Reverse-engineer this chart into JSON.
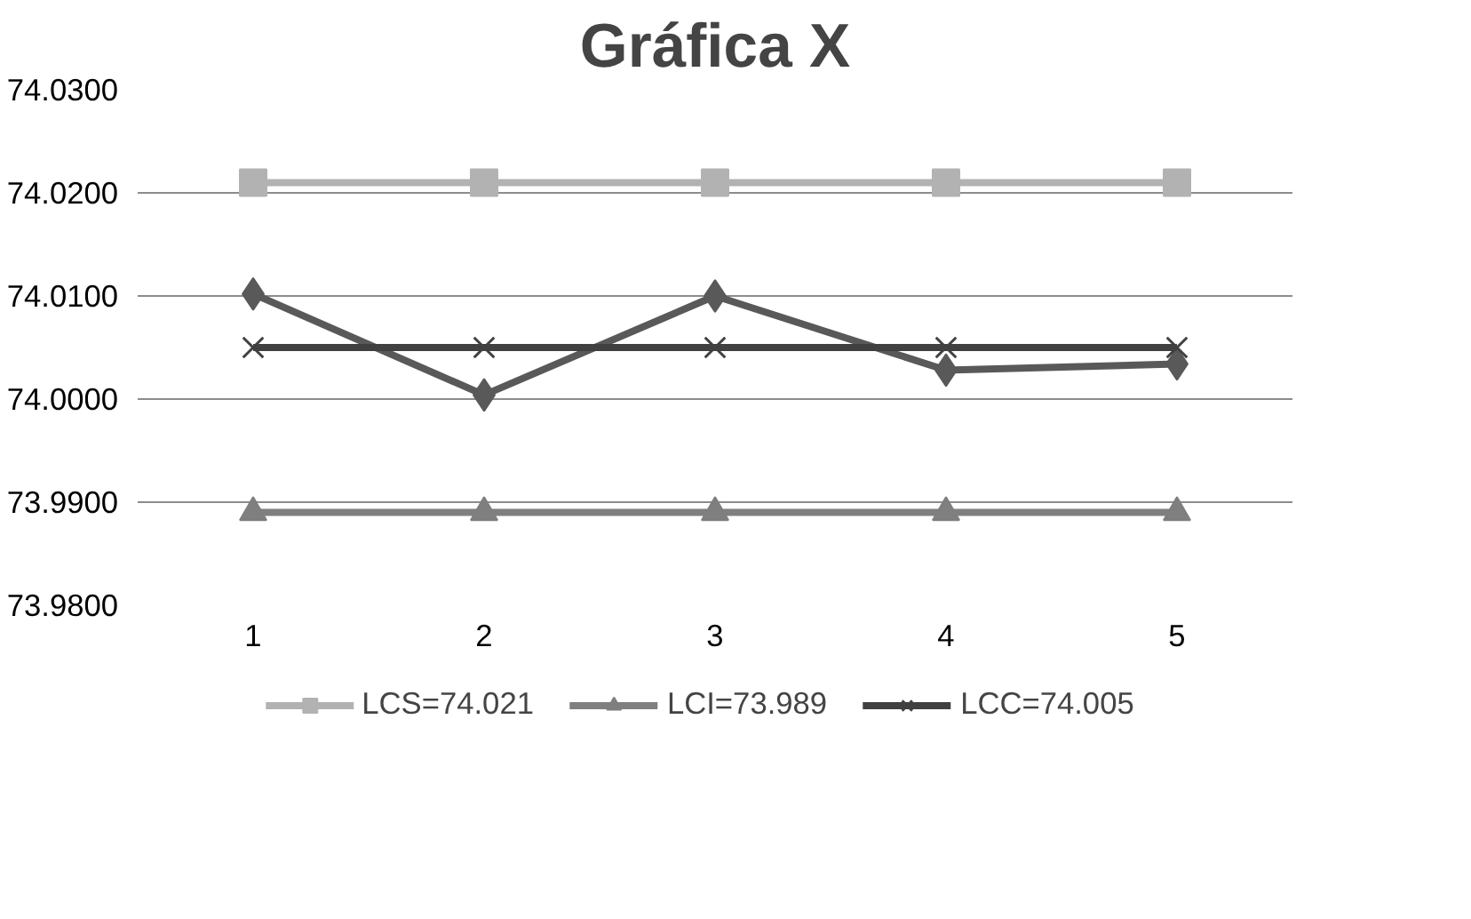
{
  "chart_data": {
    "type": "line",
    "title": "Gráfica X",
    "categories": [
      "1",
      "2",
      "3",
      "4",
      "5"
    ],
    "series": [
      {
        "color": "#595959",
        "marker": "diamond",
        "values": [
          74.0102,
          74.0004,
          74.01,
          74.0028,
          74.0034
        ]
      },
      {
        "name": "LCS=74.021",
        "color": "#b2b2b2",
        "marker": "square",
        "values": [
          74.021,
          74.021,
          74.021,
          74.021,
          74.021
        ]
      },
      {
        "name": "LCI=73.989",
        "color": "#7f7f7f",
        "marker": "triangle",
        "values": [
          73.989,
          73.989,
          73.989,
          73.989,
          73.989
        ]
      },
      {
        "name": "LCC=74.005",
        "color": "#404040",
        "marker": "cross",
        "values": [
          74.005,
          74.005,
          74.005,
          74.005,
          74.005
        ]
      }
    ],
    "ylim": [
      73.98,
      74.03
    ],
    "yticks": [
      {
        "value": 73.98,
        "label": "73.9800"
      },
      {
        "value": 73.99,
        "label": "73.9900"
      },
      {
        "value": 74.0,
        "label": "74.0000"
      },
      {
        "value": 74.01,
        "label": "74.0100"
      },
      {
        "value": 74.02,
        "label": "74.0200"
      },
      {
        "value": 74.03,
        "label": "74.0300"
      }
    ],
    "grid": "y",
    "legend": "bottom"
  }
}
